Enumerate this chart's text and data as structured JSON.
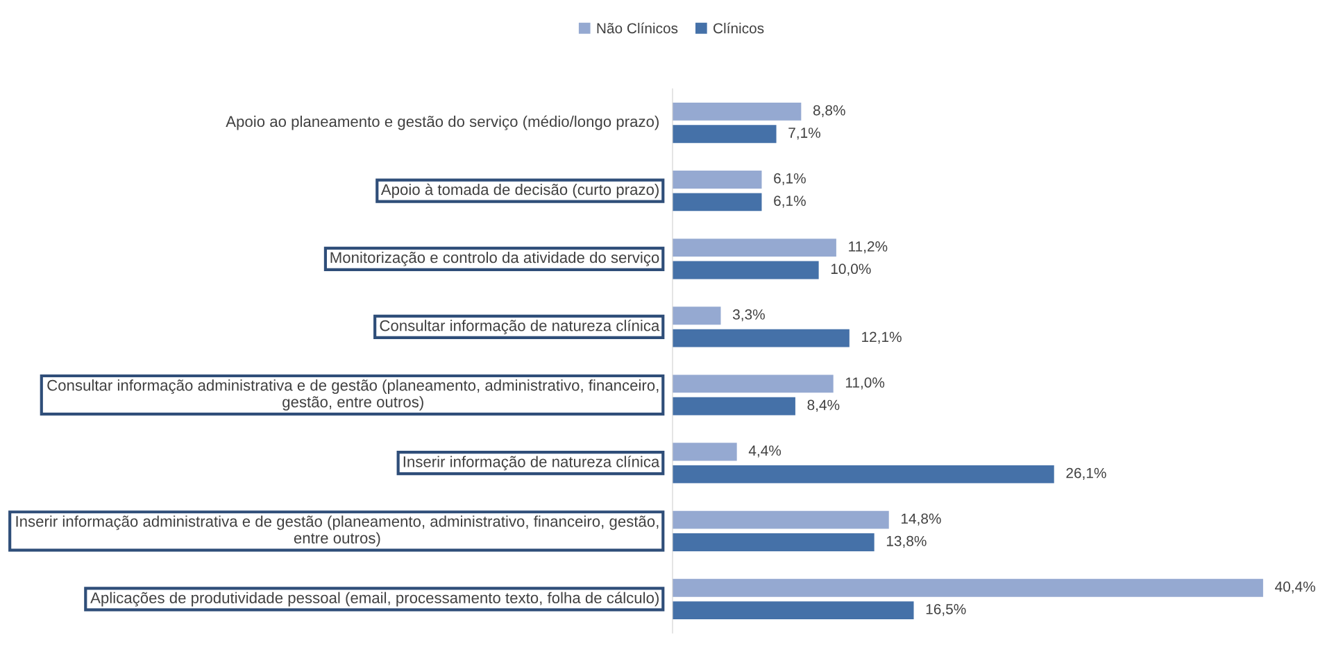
{
  "chart_data": {
    "type": "bar",
    "orientation": "horizontal",
    "relative": false,
    "legend": "top",
    "categories": [
      "Apoio ao planeamento e gestão do serviço (médio/longo prazo)",
      "Apoio à tomada de decisão (curto prazo)",
      "Monitorização e controlo da atividade do serviço",
      "Consultar informação de natureza clínica",
      "Consultar informação administrativa e de gestão (planeamento, administrativo, financeiro, gestão, entre outros)",
      "Inserir informação de natureza clínica",
      "Inserir informação administrativa e de gestão (planeamento, administrativo, financeiro, gestão, entre outros)",
      "Aplicações de produtividade pessoal (email, processamento texto, folha de cálculo)"
    ],
    "series": [
      {
        "name": "Não Clínicos",
        "color": "#95a9d1",
        "values": [
          8.8,
          6.1,
          11.2,
          3.3,
          11.0,
          4.4,
          14.8,
          40.4
        ],
        "value_labels": [
          "8,8%",
          "6,1%",
          "11,2%",
          "3,3%",
          "11,0%",
          "4,4%",
          "14,8%",
          "40,4%"
        ]
      },
      {
        "name": "Clínicos",
        "color": "#4571a8",
        "values": [
          7.1,
          6.1,
          10.0,
          12.1,
          8.4,
          26.1,
          13.8,
          16.5
        ],
        "value_labels": [
          "7,1%",
          "6,1%",
          "10,0%",
          "12,1%",
          "8,4%",
          "26,1%",
          "13,8%",
          "16,5%"
        ]
      }
    ]
  }
}
